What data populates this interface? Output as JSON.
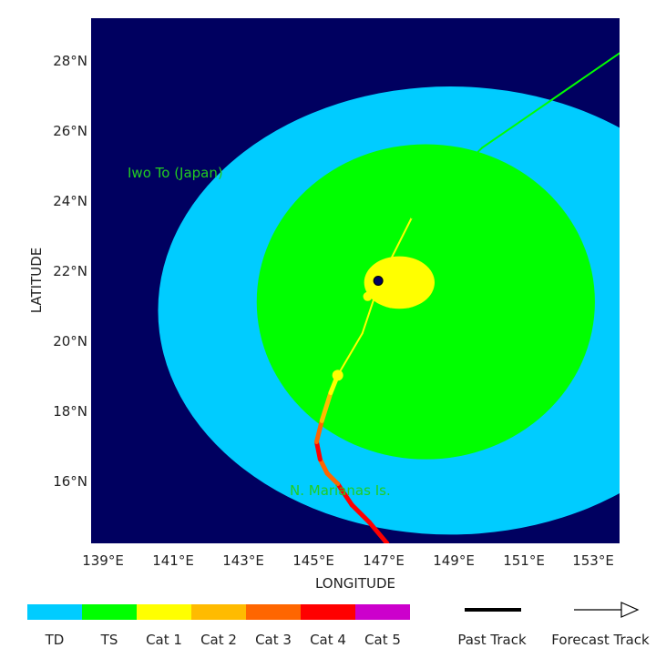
{
  "map": {
    "x_axis_title": "LONGITUDE",
    "y_axis_title": "LATITUDE",
    "lon_ticks": [
      "139°E",
      "141°E",
      "143°E",
      "145°E",
      "147°E",
      "149°E",
      "151°E",
      "153°E"
    ],
    "lat_ticks": [
      "28°N",
      "26°N",
      "24°N",
      "22°N",
      "20°N",
      "18°N",
      "16°N"
    ],
    "lon_range": [
      138.0,
      153.0
    ],
    "lat_range": [
      14.2,
      29.2
    ],
    "background_color": "#000060",
    "places": [
      {
        "name": "Iwo To (Japan)",
        "color": "#22cc22",
        "lon": 141.4,
        "lat": 24.75
      },
      {
        "name": "N. Marianas Is.",
        "color": "#22cc22",
        "lon": 145.8,
        "lat": 16.0
      }
    ],
    "wind_fields": [
      {
        "name": "TD",
        "color": "#00ccff",
        "center_lon": 148.2,
        "center_lat": 20.85,
        "radius_lon": 8.3,
        "radius_lat": 6.4
      },
      {
        "name": "TS",
        "color": "#00ff00",
        "center_lon": 147.5,
        "center_lat": 21.1,
        "radius_lon": 4.8,
        "radius_lat": 4.5
      },
      {
        "name": "Cat 1",
        "color": "#ffff00",
        "center_lon": 146.75,
        "center_lat": 21.65,
        "radius_lon": 1.0,
        "radius_lat": 0.75
      }
    ],
    "storm_center": {
      "lon": 146.15,
      "lat": 21.7
    },
    "track": [
      {
        "lon": 146.4,
        "lat": 14.2,
        "color": "#cc00cc"
      },
      {
        "lon": 145.9,
        "lat": 14.8,
        "color": "#ff0000"
      },
      {
        "lon": 145.4,
        "lat": 15.3,
        "color": "#ff0000"
      },
      {
        "lon": 145.0,
        "lat": 15.9,
        "color": "#ff0000"
      },
      {
        "lon": 144.7,
        "lat": 16.2,
        "color": "#ff6600"
      },
      {
        "lon": 144.5,
        "lat": 16.6,
        "color": "#ff6600"
      },
      {
        "lon": 144.4,
        "lat": 17.1,
        "color": "#ff0000"
      },
      {
        "lon": 144.55,
        "lat": 17.7,
        "color": "#ff6600"
      },
      {
        "lon": 144.8,
        "lat": 18.5,
        "color": "#ffbb00"
      },
      {
        "lon": 145.0,
        "lat": 19.0,
        "color": "#ffff00"
      },
      {
        "lon": 145.7,
        "lat": 20.2,
        "color": "#ffff00"
      },
      {
        "lon": 146.2,
        "lat": 21.7,
        "color": "#ffff00"
      },
      {
        "lon": 147.1,
        "lat": 23.5,
        "color": "#ffff00"
      },
      {
        "lon": 149.1,
        "lat": 25.5,
        "color": "#00ff00"
      },
      {
        "lon": 153.0,
        "lat": 28.2,
        "color": "#00ff00"
      }
    ],
    "track_dot": {
      "lon": 145.0,
      "lat": 19.0,
      "color": "#ffff00"
    }
  },
  "legend": {
    "categories": [
      {
        "label": "TD",
        "color": "#00ccff"
      },
      {
        "label": "TS",
        "color": "#00ff00"
      },
      {
        "label": "Cat 1",
        "color": "#ffff00"
      },
      {
        "label": "Cat 2",
        "color": "#ffbb00"
      },
      {
        "label": "Cat 3",
        "color": "#ff6600"
      },
      {
        "label": "Cat 4",
        "color": "#ff0000"
      },
      {
        "label": "Cat 5",
        "color": "#cc00cc"
      }
    ],
    "past_track_label": "Past Track",
    "forecast_track_label": "Forecast Track"
  }
}
